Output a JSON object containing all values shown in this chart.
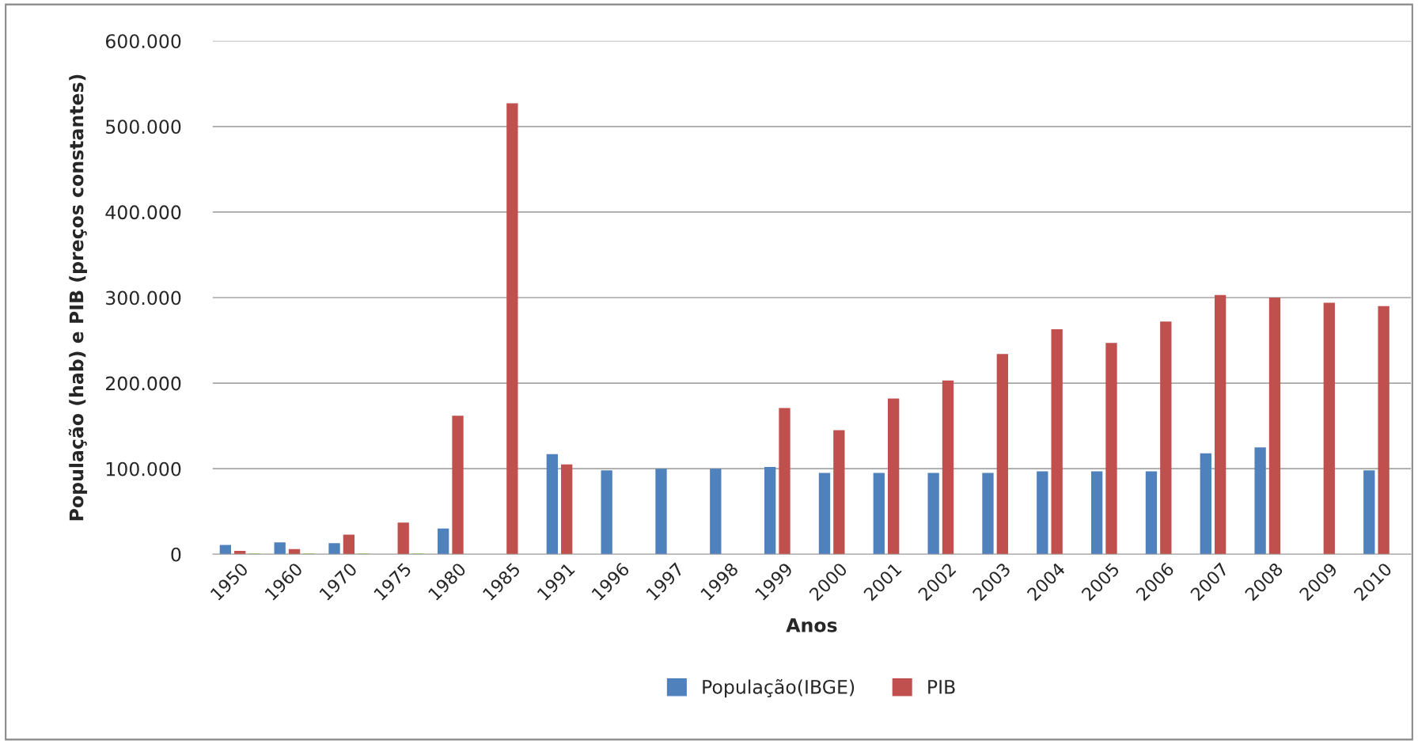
{
  "chart_data": {
    "type": "bar",
    "xlabel": "Anos",
    "ylabel": "População (hab) e PIB (preços constantes)",
    "categories": [
      "1950",
      "1960",
      "1970",
      "1975",
      "1980",
      "1985",
      "1991",
      "1996",
      "1997",
      "1998",
      "1999",
      "2000",
      "2001",
      "2002",
      "2003",
      "2004",
      "2005",
      "2006",
      "2007",
      "2008",
      "2009",
      "2010"
    ],
    "series": [
      {
        "name": "População(IBGE)",
        "color": "#4f81bd",
        "values": [
          11000,
          14000,
          13000,
          null,
          30000,
          null,
          117000,
          98000,
          100000,
          100000,
          102000,
          95000,
          95000,
          95000,
          95000,
          97000,
          97000,
          97000,
          118000,
          125000,
          null,
          98000
        ]
      },
      {
        "name": "PIB",
        "color": "#c0504d",
        "values": [
          4000,
          6000,
          23000,
          37000,
          162000,
          527000,
          105000,
          null,
          null,
          null,
          171000,
          145000,
          182000,
          203000,
          234000,
          263000,
          247000,
          272000,
          303000,
          300000,
          294000,
          290000
        ]
      },
      {
        "color": "#9bbb59",
        "values": [
          1000,
          1000,
          1000,
          1000,
          null,
          null,
          null,
          null,
          null,
          null,
          null,
          null,
          null,
          null,
          null,
          null,
          null,
          null,
          null,
          null,
          null,
          null
        ]
      }
    ],
    "ylim": [
      0,
      600000
    ],
    "yticks": [
      {
        "value": 0,
        "label": "0"
      },
      {
        "value": 100000,
        "label": "100.000"
      },
      {
        "value": 200000,
        "label": "200.000"
      },
      {
        "value": 300000,
        "label": "300.000"
      },
      {
        "value": 400000,
        "label": "400.000"
      },
      {
        "value": 500000,
        "label": "500.000"
      },
      {
        "value": 600000,
        "label": "600.000"
      }
    ],
    "grid": "y",
    "legend": "bottom"
  }
}
